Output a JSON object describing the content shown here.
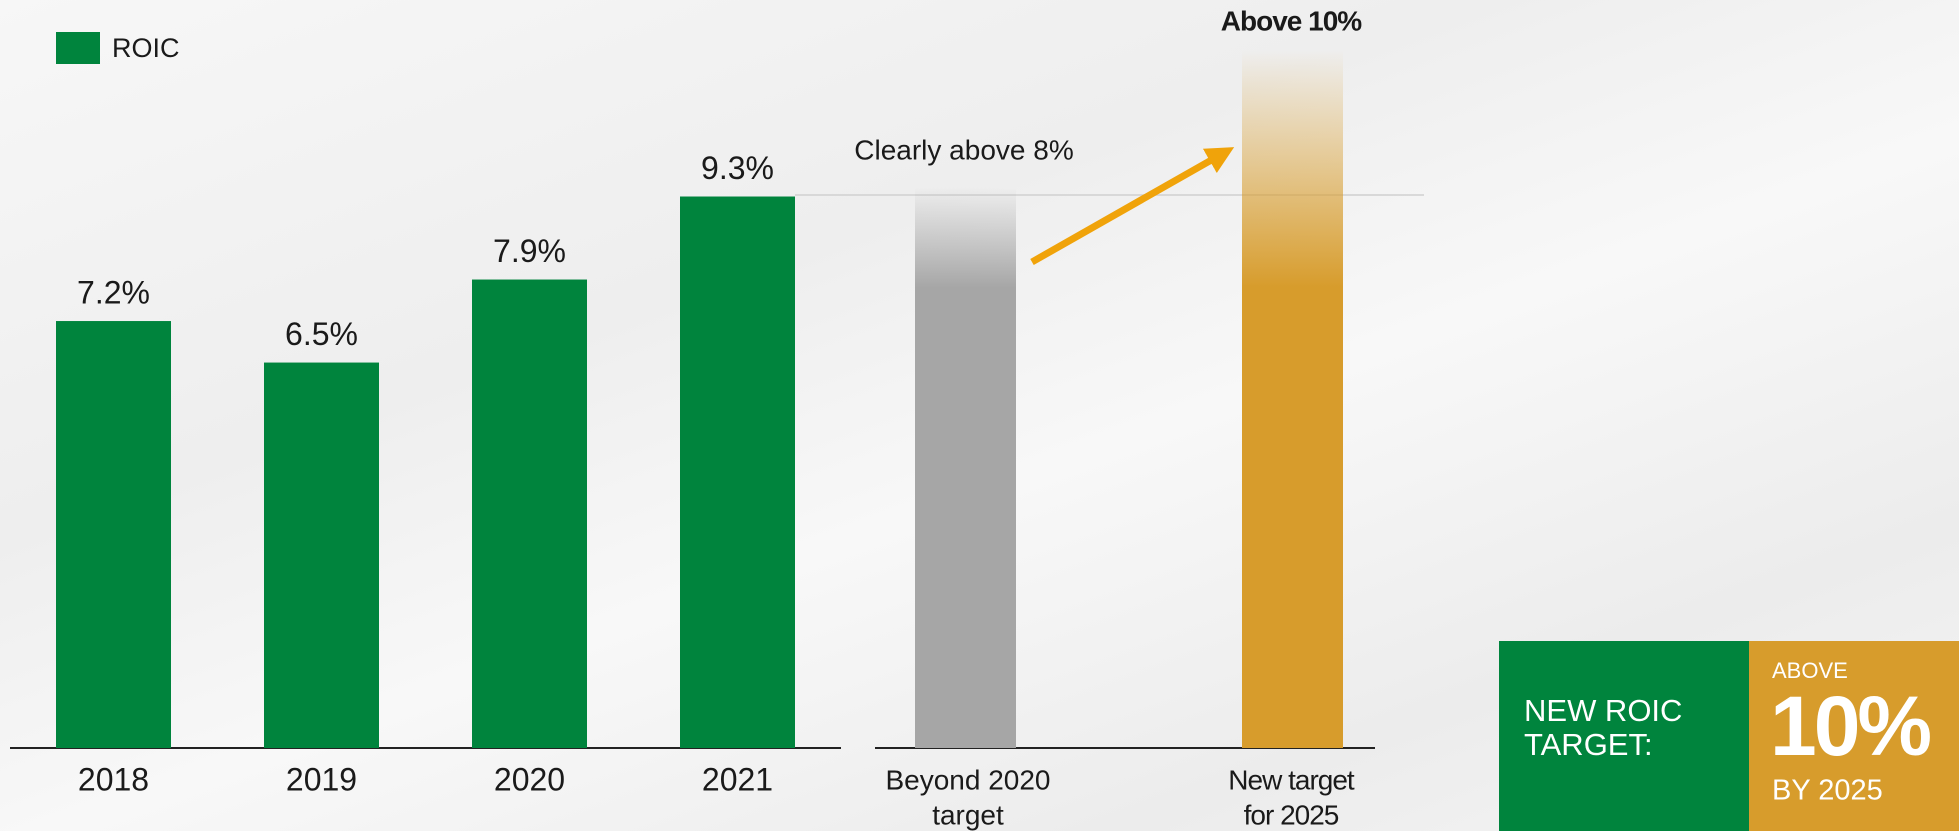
{
  "chart_data": {
    "type": "bar",
    "categories": [
      "2018",
      "2019",
      "2020",
      "2021"
    ],
    "series": [
      {
        "name": "ROIC",
        "color": "#00843d",
        "values": [
          7.2,
          6.5,
          7.9,
          9.3
        ],
        "value_labels": [
          "7.2%",
          "6.5%",
          "7.9%",
          "9.3%"
        ]
      }
    ],
    "ylim": [
      0,
      10
    ],
    "legend": "top-left",
    "targets": [
      {
        "label": [
          "Beyond 2020",
          "target"
        ],
        "note": "Clearly above 8%"
      },
      {
        "label": [
          "New target",
          "for 2025"
        ],
        "note": "Above 10%"
      }
    ]
  },
  "callout": {
    "title": [
      "NEW ROIC",
      "TARGET:"
    ],
    "prefix": "ABOVE",
    "value": "10%",
    "suffix": "BY 2025"
  }
}
